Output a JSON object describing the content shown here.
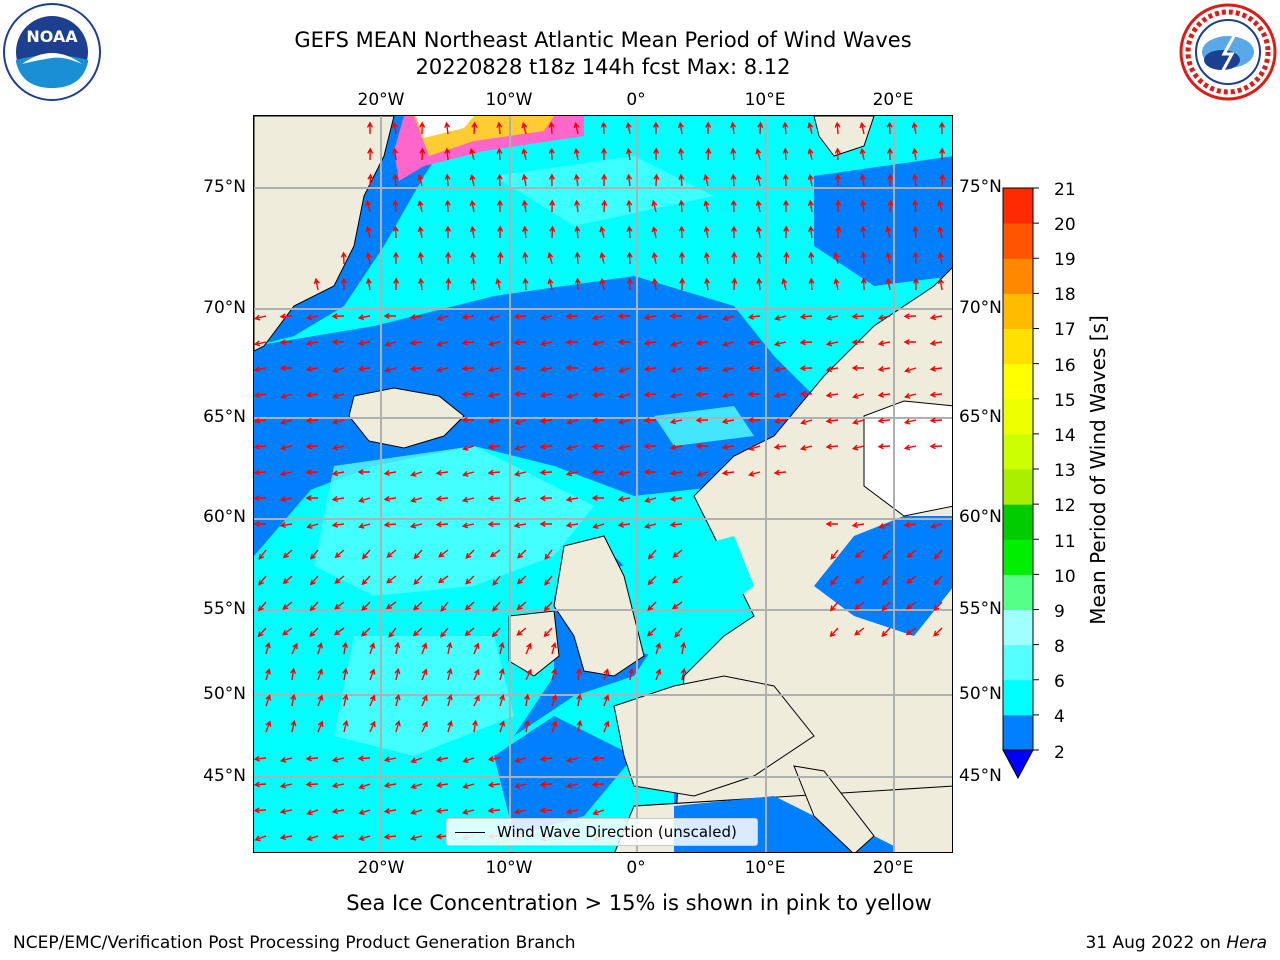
{
  "header": {
    "title_line1": "GEFS MEAN Northeast Atlantic Mean Period of Wind Waves",
    "title_line2": "20220828 t18z 144h fcst   Max: 8.12"
  },
  "logos": {
    "left": {
      "name": "NOAA",
      "ring_text": "NATIONAL OCEANIC AND ATMOSPHERIC ADMINISTRATION · U.S. DEPARTMENT OF COMMERCE"
    },
    "right": {
      "name": "NATIONAL WEATHER SERVICE"
    }
  },
  "map": {
    "latitude_labels": [
      "75°N",
      "70°N",
      "65°N",
      "60°N",
      "55°N",
      "50°N",
      "45°N"
    ],
    "longitude_labels": [
      "20°W",
      "10°W",
      "0°",
      "10°E",
      "20°E"
    ],
    "legend_label": "Wind Wave Direction (unscaled)",
    "arrow_color": "#ff0000",
    "land_color": "#efecdc",
    "unfilled_color": "#ffffff"
  },
  "colorbar": {
    "title": "Mean Period of Wind Waves [s]",
    "tick_labels": [
      "2",
      "4",
      "6",
      "8",
      "9",
      "10",
      "11",
      "12",
      "13",
      "14",
      "15",
      "16",
      "17",
      "18",
      "19",
      "20",
      "21"
    ],
    "colors": [
      "#0080ff",
      "#00ffff",
      "#55ffff",
      "#a0ffff",
      "#55ff88",
      "#00ee00",
      "#00cc00",
      "#aaee00",
      "#ccff00",
      "#eeff00",
      "#ffff00",
      "#ffe000",
      "#ffbb00",
      "#ff8800",
      "#ff5500",
      "#ff2a00",
      "#ff0000"
    ],
    "extend_color": "#0000ff"
  },
  "subtitle": "Sea Ice Concentration > 15% is shown in pink to yellow",
  "footer": {
    "left": "NCEP/EMC/Verification Post Processing Product Generation Branch",
    "right_date": "31 Aug 2022 on ",
    "right_machine": "Hera"
  }
}
